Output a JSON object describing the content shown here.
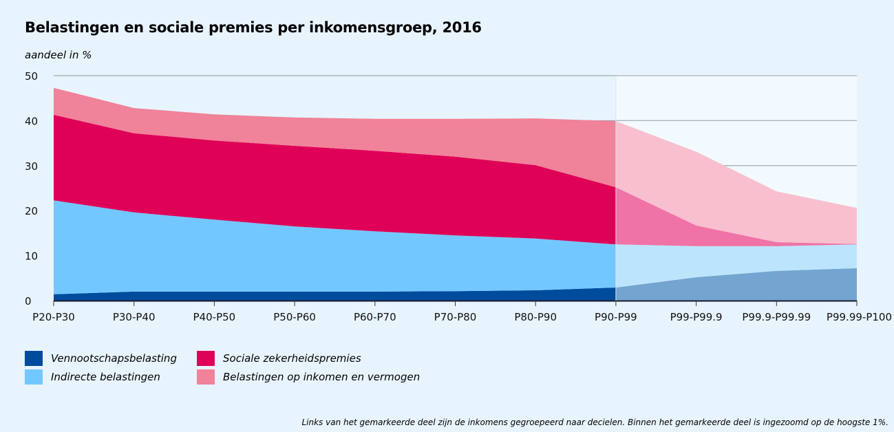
{
  "chart_data": {
    "type": "area",
    "stacked": true,
    "title": "Belastingen en sociale premies per inkomensgroep, 2016",
    "ylabel": "aandeel in %",
    "xlabel": "",
    "ylim": [
      0,
      50
    ],
    "yticks": [
      0,
      10,
      20,
      30,
      40,
      50
    ],
    "grid": true,
    "legend_position": "bottom-left",
    "categories": [
      "P20-P30",
      "P30-P40",
      "P40-P50",
      "P50-P60",
      "P60-P70",
      "P70-P80",
      "P80-P90",
      "P90-P99",
      "P99-P99.9",
      "P99.9-P99.99",
      "P99.99-P100"
    ],
    "highlight_range": [
      "P90-P99",
      "P99.99-P100"
    ],
    "series": [
      {
        "name": "Vennootschapsbelasting",
        "color": "#004c9c",
        "highlight_color": "#73a5d0",
        "values": [
          1.4,
          2.0,
          2.0,
          2.0,
          2.0,
          2.1,
          2.3,
          2.9,
          5.2,
          6.6,
          7.2
        ]
      },
      {
        "name": "Indirecte belastingen",
        "color": "#73c7ff",
        "highlight_color": "#bce5fd",
        "values": [
          20.9,
          17.6,
          16.0,
          14.5,
          13.4,
          12.4,
          11.5,
          9.6,
          6.9,
          5.5,
          5.3
        ]
      },
      {
        "name": "Sociale zekerheidspremies",
        "color": "#df0058",
        "highlight_color": "#ef73a6",
        "values": [
          19.0,
          17.6,
          17.6,
          17.9,
          17.9,
          17.5,
          16.3,
          12.7,
          4.6,
          0.9,
          0.1
        ]
      },
      {
        "name": "Belastingen op inkomen en vermogen",
        "color": "#f08299",
        "highlight_color": "#f8c0cf",
        "values": [
          6.0,
          5.6,
          5.8,
          6.3,
          7.1,
          8.4,
          10.4,
          14.7,
          16.4,
          11.3,
          8.0
        ]
      }
    ],
    "note": "Links van het gemarkeerde deel zijn de inkomens gegroepeerd naar decielen. Binnen het gemarkeerde deel is ingezoomd op de hoogste 1%."
  },
  "colors": {
    "background": "#e8f4fd",
    "highlight_background": "#f3faff",
    "grid": "#8a9499",
    "axis": "#1a1a2e"
  }
}
